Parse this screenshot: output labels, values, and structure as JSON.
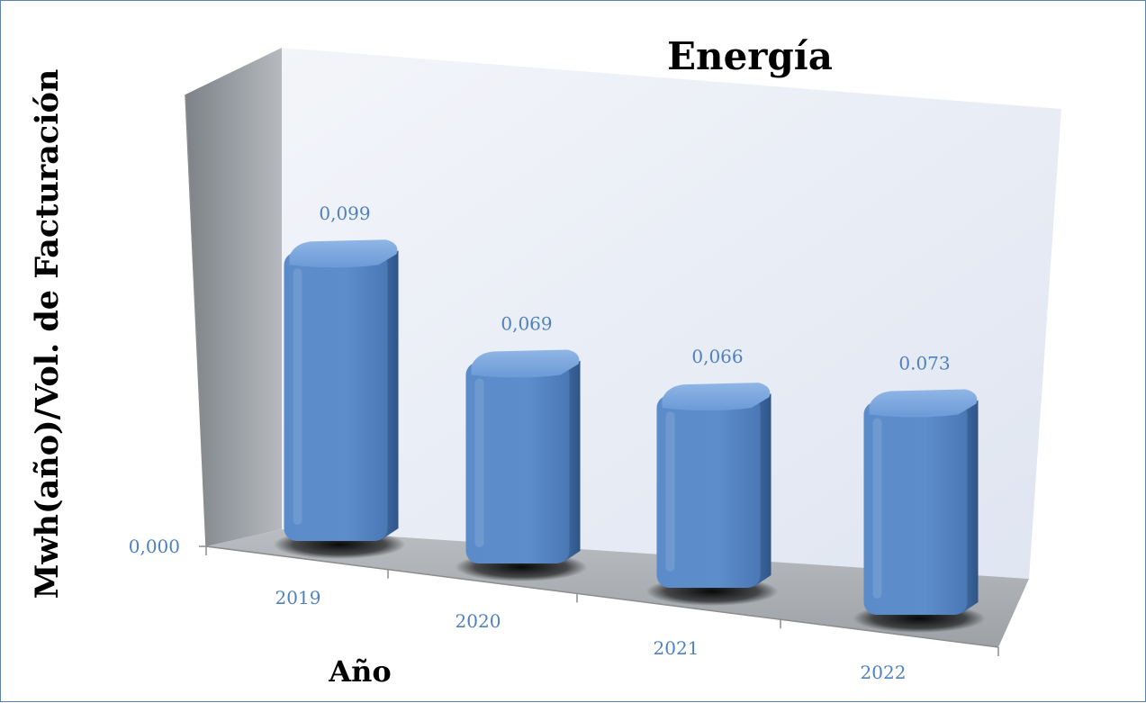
{
  "chart_data": {
    "type": "bar",
    "title": "Energía",
    "xlabel": "Año",
    "ylabel": "Mwh(año)/Vol. de Facturación",
    "categories": [
      "2019",
      "2020",
      "2021",
      "2022"
    ],
    "values": [
      0.099,
      0.069,
      0.066,
      0.073
    ],
    "value_labels": [
      "0,099",
      "0,069",
      "0,066",
      "0.073"
    ],
    "y_tick_labels": [
      "0,000"
    ],
    "ylim": [
      0,
      0.16
    ],
    "grid": false,
    "legend": "none",
    "style": "3d-column"
  },
  "colors": {
    "bar": "#5b8bc9",
    "bar_dark": "#3d6aa5",
    "bar_top": "#7aa7dd",
    "label_blue": "#4f81bd",
    "back_wall": "#e7ecf6",
    "side_wall": "#9aa0a6",
    "floor": "#a9acb0",
    "frame": "#5b83ad"
  }
}
